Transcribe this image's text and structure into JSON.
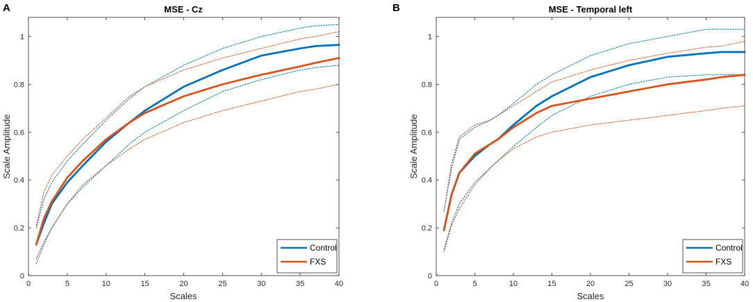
{
  "chart_data": [
    {
      "type": "line",
      "panel_label": "A",
      "title": "MSE - Cz",
      "xlabel": "Scales",
      "ylabel": "Scale Amplitude",
      "xlim": [
        0,
        40
      ],
      "ylim": [
        0,
        1.08
      ],
      "xticks": [
        0,
        5,
        10,
        15,
        20,
        25,
        30,
        35,
        40
      ],
      "yticks": [
        0,
        0.2,
        0.4,
        0.6,
        0.8,
        1
      ],
      "ytick_labels": [
        "0",
        "0.2",
        "0.4",
        "0.6",
        "0.8",
        "1"
      ],
      "legend_position": "bottom-right",
      "x": [
        1,
        2,
        3,
        5,
        7,
        10,
        13,
        15,
        20,
        25,
        30,
        35,
        37,
        40
      ],
      "series": [
        {
          "name": "Control",
          "color": "#0072BD",
          "style": "solid",
          "values": [
            0.13,
            0.22,
            0.3,
            0.39,
            0.46,
            0.56,
            0.64,
            0.69,
            0.79,
            0.86,
            0.92,
            0.95,
            0.96,
            0.965
          ]
        },
        {
          "name": "FXS",
          "color": "#D95319",
          "style": "solid",
          "values": [
            0.13,
            0.24,
            0.31,
            0.41,
            0.48,
            0.57,
            0.64,
            0.68,
            0.75,
            0.8,
            0.84,
            0.875,
            0.89,
            0.91
          ]
        },
        {
          "name": "Control upper",
          "color": "#0072BD",
          "style": "dotted",
          "values": [
            0.2,
            0.32,
            0.39,
            0.48,
            0.55,
            0.65,
            0.74,
            0.79,
            0.88,
            0.95,
            1.0,
            1.035,
            1.045,
            1.05
          ]
        },
        {
          "name": "Control lower",
          "color": "#0072BD",
          "style": "dotted",
          "values": [
            0.07,
            0.14,
            0.2,
            0.3,
            0.37,
            0.46,
            0.55,
            0.6,
            0.69,
            0.77,
            0.82,
            0.86,
            0.87,
            0.88
          ]
        },
        {
          "name": "FXS upper",
          "color": "#D95319",
          "style": "dotted",
          "values": [
            0.21,
            0.35,
            0.42,
            0.5,
            0.57,
            0.66,
            0.75,
            0.79,
            0.86,
            0.91,
            0.95,
            0.99,
            1.0,
            1.02
          ]
        },
        {
          "name": "FXS lower",
          "color": "#D95319",
          "style": "dotted",
          "values": [
            0.05,
            0.13,
            0.2,
            0.3,
            0.38,
            0.46,
            0.53,
            0.57,
            0.64,
            0.69,
            0.73,
            0.77,
            0.78,
            0.8
          ]
        }
      ]
    },
    {
      "type": "line",
      "panel_label": "B",
      "title": "MSE - Temporal left",
      "xlabel": "Scales",
      "ylabel": "Scale Amplitude",
      "xlim": [
        0,
        40
      ],
      "ylim": [
        0,
        1.08
      ],
      "xticks": [
        0,
        5,
        10,
        15,
        20,
        25,
        30,
        35,
        40
      ],
      "yticks": [
        0,
        0.2,
        0.4,
        0.6,
        0.8,
        1
      ],
      "ytick_labels": [
        "0",
        "0.2",
        "0.4",
        "0.6",
        "0.8",
        "1"
      ],
      "legend_position": "bottom-right",
      "x": [
        1,
        2,
        3,
        5,
        7,
        8,
        10,
        13,
        15,
        20,
        25,
        30,
        35,
        37,
        40
      ],
      "series": [
        {
          "name": "Control",
          "color": "#0072BD",
          "style": "solid",
          "values": [
            0.19,
            0.34,
            0.43,
            0.5,
            0.55,
            0.57,
            0.63,
            0.71,
            0.75,
            0.83,
            0.88,
            0.915,
            0.93,
            0.935,
            0.935
          ]
        },
        {
          "name": "FXS",
          "color": "#D95319",
          "style": "solid",
          "values": [
            0.19,
            0.34,
            0.43,
            0.51,
            0.55,
            0.57,
            0.62,
            0.68,
            0.71,
            0.74,
            0.77,
            0.8,
            0.82,
            0.83,
            0.84
          ]
        },
        {
          "name": "Control upper",
          "color": "#0072BD",
          "style": "dotted",
          "values": [
            0.27,
            0.45,
            0.57,
            0.62,
            0.65,
            0.67,
            0.72,
            0.8,
            0.84,
            0.92,
            0.97,
            1.0,
            1.03,
            1.03,
            1.03
          ]
        },
        {
          "name": "Control lower",
          "color": "#0072BD",
          "style": "dotted",
          "values": [
            0.11,
            0.22,
            0.3,
            0.39,
            0.45,
            0.48,
            0.54,
            0.62,
            0.67,
            0.75,
            0.8,
            0.83,
            0.84,
            0.84,
            0.84
          ]
        },
        {
          "name": "FXS upper",
          "color": "#D95319",
          "style": "dotted",
          "values": [
            0.27,
            0.47,
            0.58,
            0.63,
            0.65,
            0.67,
            0.71,
            0.77,
            0.81,
            0.86,
            0.9,
            0.93,
            0.955,
            0.96,
            0.98
          ]
        },
        {
          "name": "FXS lower",
          "color": "#D95319",
          "style": "dotted",
          "values": [
            0.1,
            0.21,
            0.28,
            0.38,
            0.45,
            0.48,
            0.53,
            0.58,
            0.6,
            0.63,
            0.65,
            0.67,
            0.69,
            0.7,
            0.71
          ]
        }
      ]
    }
  ]
}
